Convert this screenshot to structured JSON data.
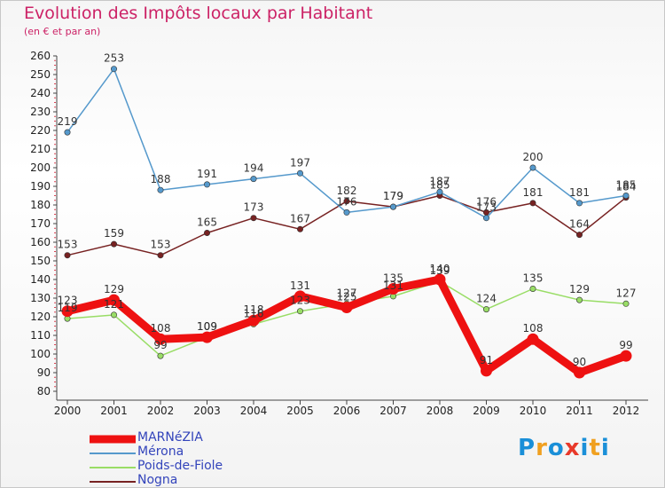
{
  "title": "Evolution des Impôts locaux par Habitant",
  "subtitle": "(en € et par an)",
  "brand": {
    "letters": [
      "P",
      "r",
      "o",
      "x",
      "i",
      "t",
      "i"
    ],
    "colors": [
      "#1a8fd8",
      "#f0a020",
      "#1a8fd8",
      "#e8392a",
      "#1a8fd8",
      "#f0a020",
      "#1a8fd8"
    ]
  },
  "chart_data": {
    "type": "line",
    "title": "Evolution des Impôts locaux par Habitant",
    "subtitle": "(en € et par an)",
    "x": [
      "2000",
      "2001",
      "2002",
      "2003",
      "2004",
      "2005",
      "2006",
      "2007",
      "2008",
      "2009",
      "2010",
      "2011",
      "2012"
    ],
    "ylim": [
      80,
      260
    ],
    "yticks": [
      80,
      90,
      100,
      110,
      120,
      130,
      140,
      150,
      160,
      170,
      180,
      190,
      200,
      210,
      220,
      230,
      240,
      250,
      260
    ],
    "grid": false,
    "legend_position": "bottom-left",
    "series": [
      {
        "name": "MARNéZIA",
        "color": "#ee1111",
        "values": [
          123,
          129,
          108,
          109,
          118,
          131,
          125,
          135,
          140,
          91,
          108,
          90,
          99
        ]
      },
      {
        "name": "Mérona",
        "color": "#5599cc",
        "values": [
          219,
          253,
          188,
          191,
          194,
          197,
          176,
          179,
          187,
          173,
          200,
          181,
          185
        ]
      },
      {
        "name": "Poids-de-Fiole",
        "color": "#99dd66",
        "values": [
          119,
          121,
          99,
          109,
          116,
          123,
          127,
          131,
          139,
          124,
          135,
          129,
          127
        ]
      },
      {
        "name": "Nogna",
        "color": "#772222",
        "values": [
          153,
          159,
          153,
          165,
          173,
          167,
          182,
          179,
          185,
          176,
          181,
          164,
          184
        ]
      }
    ]
  }
}
